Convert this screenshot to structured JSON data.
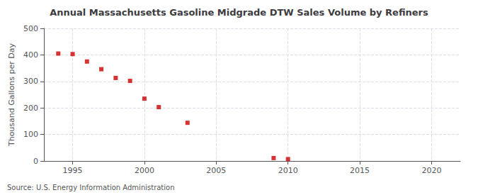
{
  "chart_data": {
    "type": "scatter",
    "title": "Annual Massachusetts Gasoline Midgrade DTW Sales Volume by Refiners",
    "ylabel": "Thousand Gallons per Day",
    "annotation": "Source: U.S. Energy Information Administration",
    "x": [
      1994,
      1995,
      1996,
      1997,
      1998,
      1999,
      2000,
      2001,
      2003,
      2009,
      2010
    ],
    "values": [
      405,
      403,
      375,
      346,
      313,
      302,
      235,
      203,
      144,
      11,
      7
    ],
    "color": "#cc0000",
    "marker": "square",
    "xlim": [
      1993,
      2022
    ],
    "ylim": [
      0,
      500
    ],
    "xticks": [
      1995,
      2000,
      2005,
      2010,
      2015,
      2020
    ],
    "yticks": [
      0,
      100,
      200,
      300,
      400,
      500
    ],
    "grid": true
  }
}
